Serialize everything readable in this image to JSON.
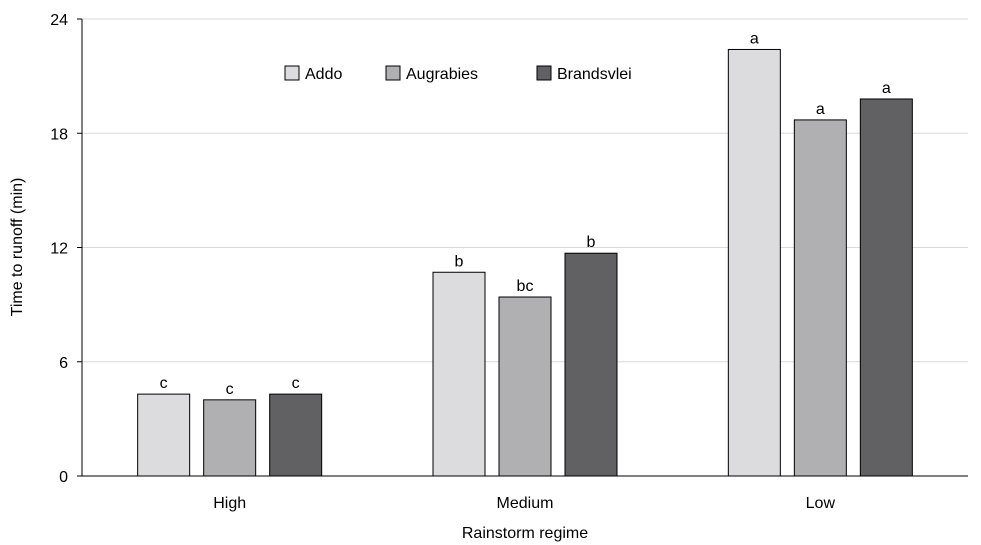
{
  "chart_data": {
    "type": "bar",
    "title": "",
    "xlabel": "Rainstorm regime",
    "ylabel": "Time to runoff (min)",
    "categories": [
      "High",
      "Medium",
      "Low"
    ],
    "series": [
      {
        "name": "Addo",
        "color": "#dcdcde",
        "values": [
          4.3,
          10.7,
          22.4
        ],
        "labels": [
          "c",
          "b",
          "a"
        ]
      },
      {
        "name": "Augrabies",
        "color": "#b0b0b2",
        "values": [
          4.0,
          9.4,
          18.7
        ],
        "labels": [
          "c",
          "bc",
          "a"
        ]
      },
      {
        "name": "Brandsvlei",
        "color": "#616163",
        "values": [
          4.3,
          11.7,
          19.8
        ],
        "labels": [
          "c",
          "b",
          "a"
        ]
      }
    ],
    "ylim": [
      0,
      24
    ],
    "yticks": [
      0,
      6,
      12,
      18,
      24
    ],
    "grid": true,
    "legend_position": "top-center"
  }
}
